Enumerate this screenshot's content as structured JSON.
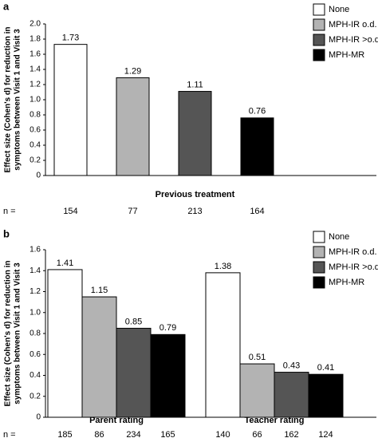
{
  "chart_data": [
    {
      "type": "bar",
      "panel": "a",
      "ylabel": [
        "Effect size (Cohen's d) for reduction in",
        "symptoms between Visit 1 and Visit 3"
      ],
      "xlabel": "Previous treatment",
      "n_label": "n =",
      "categories": [
        null
      ],
      "series": [
        {
          "name": "None",
          "color": "#ffffff",
          "values": [
            1.73
          ],
          "n": [
            154
          ]
        },
        {
          "name": "MPH-IR o.d.",
          "color": "#b3b3b3",
          "values": [
            1.29
          ],
          "n": [
            77
          ]
        },
        {
          "name": "MPH-IR >o.d.",
          "color": "#555555",
          "values": [
            1.11
          ],
          "n": [
            213
          ]
        },
        {
          "name": "MPH-MR",
          "color": "#000000",
          "values": [
            0.76
          ],
          "n": [
            164
          ]
        }
      ],
      "ylim": [
        0,
        2
      ],
      "yticks": [
        0,
        0.2,
        0.4,
        0.6,
        0.8,
        {
          "value": 1,
          "label": "1.0"
        },
        1.2,
        1.4,
        1.6,
        1.8,
        {
          "value": 2,
          "label": "2.0"
        }
      ],
      "legend": "upper right"
    },
    {
      "type": "bar",
      "panel": "b",
      "ylabel": [
        "Effect size (Cohen's d) for reduction in",
        "symptoms between Visit 1 and Visit 3"
      ],
      "n_label": "n =",
      "categories": [
        "Parent rating",
        "Teacher rating"
      ],
      "series": [
        {
          "name": "None",
          "color": "#ffffff",
          "values": [
            1.41,
            1.38
          ],
          "n": [
            185,
            140
          ]
        },
        {
          "name": "MPH-IR o.d.",
          "color": "#b3b3b3",
          "values": [
            1.15,
            0.51
          ],
          "n": [
            86,
            66
          ]
        },
        {
          "name": "MPH-IR >o.d.",
          "color": "#555555",
          "values": [
            0.85,
            0.43
          ],
          "n": [
            234,
            162
          ]
        },
        {
          "name": "MPH-MR",
          "color": "#000000",
          "values": [
            0.79,
            0.41
          ],
          "n": [
            165,
            124
          ]
        }
      ],
      "ylim": [
        0,
        1.6
      ],
      "yticks": [
        0,
        0.2,
        0.4,
        0.6,
        0.8,
        {
          "value": 1,
          "label": "1.0"
        },
        1.2,
        1.4,
        1.6
      ],
      "legend": "upper right"
    }
  ]
}
